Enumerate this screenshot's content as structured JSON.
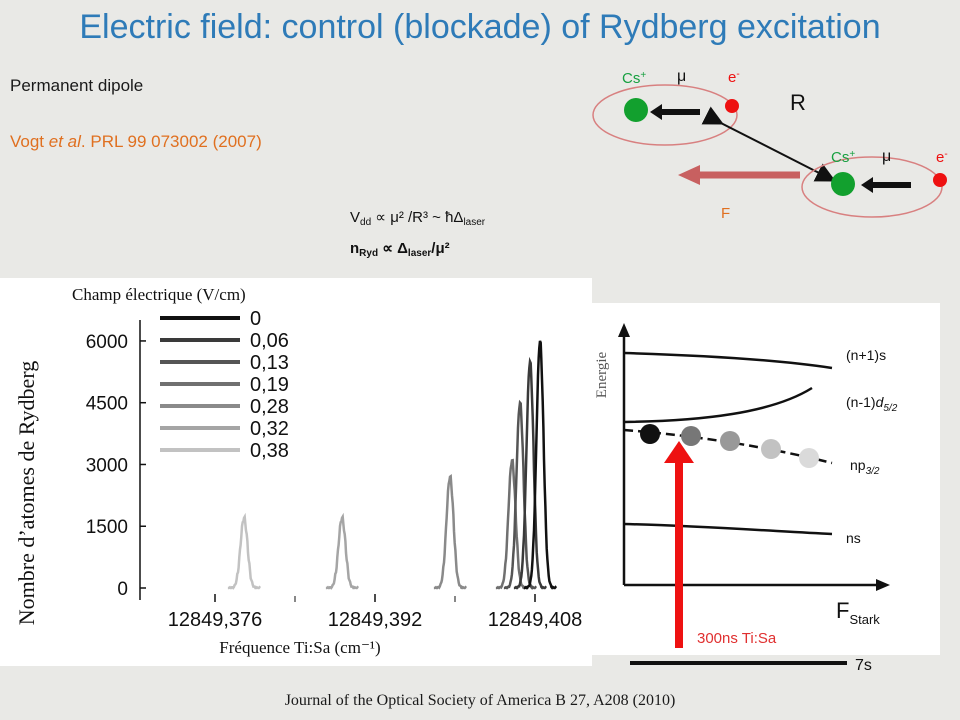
{
  "slide": {
    "title": "Electric field: control (blockade) of Rydberg excitation",
    "subtitle": "Permanent dipole",
    "reference": "Vogt et al. PRL 99 073002 (2007)",
    "journal": "Journal of the Optical Society of America B 27, A208 (2010)"
  },
  "dipole_diagram": {
    "ion_label": "Cs+",
    "dipole_label": "μ",
    "electron_label": "e-",
    "distance_label": "R",
    "field_label": "F"
  },
  "formulas": {
    "line1": "Vdd ∝ μ² /R³ ~ ħΔlaser",
    "line2": "nRyd ∝ Δlaser/μ²"
  },
  "spectrum": {
    "legend_title": "Champ électrique (V/cm)",
    "ylabel": "Nombre d’atomes de Rydberg",
    "xlabel": "Fréquence Ti:Sa (cm⁻¹)"
  },
  "chart_data": {
    "type": "line",
    "title": "",
    "xlabel": "Fréquence Ti:Sa (cm⁻¹)",
    "ylabel": "Nombre d’atomes de Rydberg",
    "legend_title": "Champ électrique (V/cm)",
    "x_ticks": [
      "12849,376",
      "12849,392",
      "12849,408"
    ],
    "y_ticks": [
      0,
      1500,
      3000,
      4500,
      6000
    ],
    "ylim": [
      0,
      6800
    ],
    "series": [
      {
        "name": "0",
        "color": "#111111",
        "peak_x": 12849.4085,
        "peak_y": 6000
      },
      {
        "name": "0,06",
        "color": "#3a3a3a",
        "peak_x": 12849.4075,
        "peak_y": 5500
      },
      {
        "name": "0,13",
        "color": "#555555",
        "peak_x": 12849.4065,
        "peak_y": 4500
      },
      {
        "name": "0,19",
        "color": "#707070",
        "peak_x": 12849.4057,
        "peak_y": 3100
      },
      {
        "name": "0,28",
        "color": "#8a8a8a",
        "peak_x": 12849.3995,
        "peak_y": 2700
      },
      {
        "name": "0,32",
        "color": "#a5a5a5",
        "peak_x": 12849.3887,
        "peak_y": 1700
      },
      {
        "name": "0,38",
        "color": "#c2c2c2",
        "peak_x": 12849.3789,
        "peak_y": 1700
      }
    ]
  },
  "energy_diagram": {
    "ylabel": "Energie",
    "levels": [
      "(n+1)s",
      "(n-1)d5/2",
      "np3/2",
      "ns"
    ],
    "xlabel_main": "F",
    "xlabel_sub": "Stark",
    "laser_label": "300ns Ti:Sa",
    "ground_label": "7s",
    "colors": {
      "laser": "#ee1111",
      "text_red": "#e03030"
    }
  }
}
